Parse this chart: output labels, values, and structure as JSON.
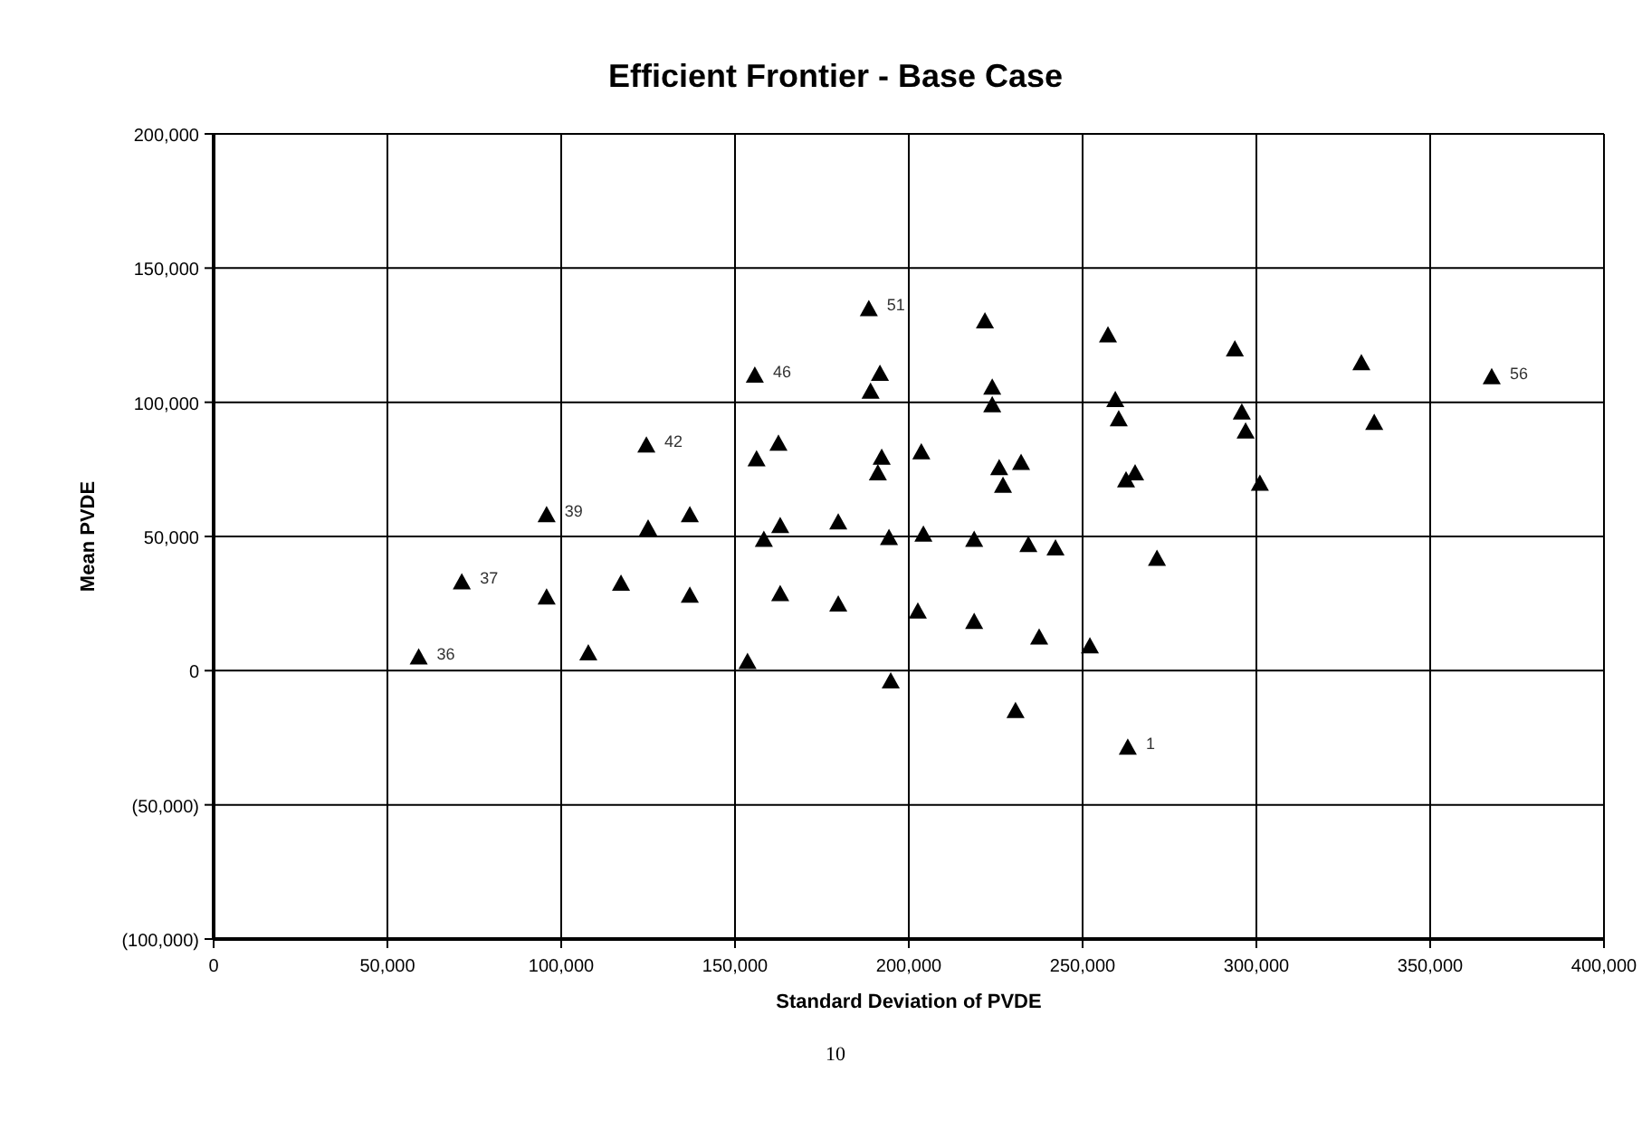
{
  "chart_data": {
    "type": "scatter",
    "title": "Efficient Frontier - Base Case",
    "xlabel": "Standard Deviation of PVDE",
    "ylabel": "Mean PVDE",
    "marker": "triangle",
    "grid": true,
    "xlim": [
      0,
      400000
    ],
    "ylim": [
      -100000,
      200000
    ],
    "xticks": [
      0,
      {
        "value": 50000,
        "label": "50,000"
      },
      {
        "value": 100000,
        "label": "100,000"
      },
      {
        "value": 150000,
        "label": "150,000"
      },
      {
        "value": 200000,
        "label": "200,000"
      },
      {
        "value": 250000,
        "label": "250,000"
      },
      {
        "value": 300000,
        "label": "300,000"
      },
      {
        "value": 350000,
        "label": "350,000"
      },
      {
        "value": 400000,
        "label": "400,000"
      }
    ],
    "yticks": [
      {
        "value": -100000,
        "label": "(100,000)"
      },
      {
        "value": -50000,
        "label": "(50,000)"
      },
      0,
      {
        "value": 50000,
        "label": "50,000"
      },
      {
        "value": 100000,
        "label": "100,000"
      },
      {
        "value": 150000,
        "label": "150,000"
      },
      {
        "value": 200000,
        "label": "200,000"
      }
    ],
    "series": [
      {
        "color": "#000000",
        "x": [
          59000,
          71400,
          95800,
          95800,
          107800,
          117200,
          124500,
          125000,
          137000,
          137000,
          153600,
          155700,
          156200,
          162500,
          158300,
          163000,
          163000,
          179700,
          179700,
          188500,
          189000,
          191700,
          192200,
          191100,
          194300,
          194800,
          203600,
          204200,
          202600,
          221900,
          224000,
          224000,
          226000,
          227100,
          232300,
          218800,
          234400,
          242200,
          218800,
          237500,
          252100,
          230700,
          263000,
          257300,
          259400,
          260400,
          262500,
          265100,
          271400,
          293800,
          295800,
          296900,
          301000,
          330200,
          333900,
          367700
        ],
        "values": [
          5000,
          33000,
          27300,
          58000,
          6500,
          32500,
          84000,
          53000,
          58000,
          28000,
          3300,
          110000,
          78800,
          84600,
          48800,
          54000,
          28600,
          55300,
          24700,
          134800,
          104000,
          110700,
          79400,
          73600,
          49500,
          -3900,
          81400,
          50800,
          22100,
          130200,
          105500,
          99000,
          75500,
          69000,
          77500,
          48800,
          46900,
          45600,
          18200,
          12400,
          9100,
          -15000,
          -28600,
          125000,
          100900,
          93700,
          71000,
          73600,
          41700,
          119800,
          96300,
          89200,
          69700,
          114600,
          92400,
          109400
        ]
      }
    ],
    "annotations": [
      {
        "text": "36",
        "x": 59000,
        "y": 5000
      },
      {
        "text": "37",
        "x": 71400,
        "y": 33000
      },
      {
        "text": "39",
        "x": 95800,
        "y": 58000
      },
      {
        "text": "42",
        "x": 124500,
        "y": 84000
      },
      {
        "text": "46",
        "x": 155700,
        "y": 110000
      },
      {
        "text": "51",
        "x": 188500,
        "y": 134800
      },
      {
        "text": "56",
        "x": 367700,
        "y": 109400
      },
      {
        "text": "1",
        "x": 263000,
        "y": -28600
      },
      "10"
    ]
  }
}
